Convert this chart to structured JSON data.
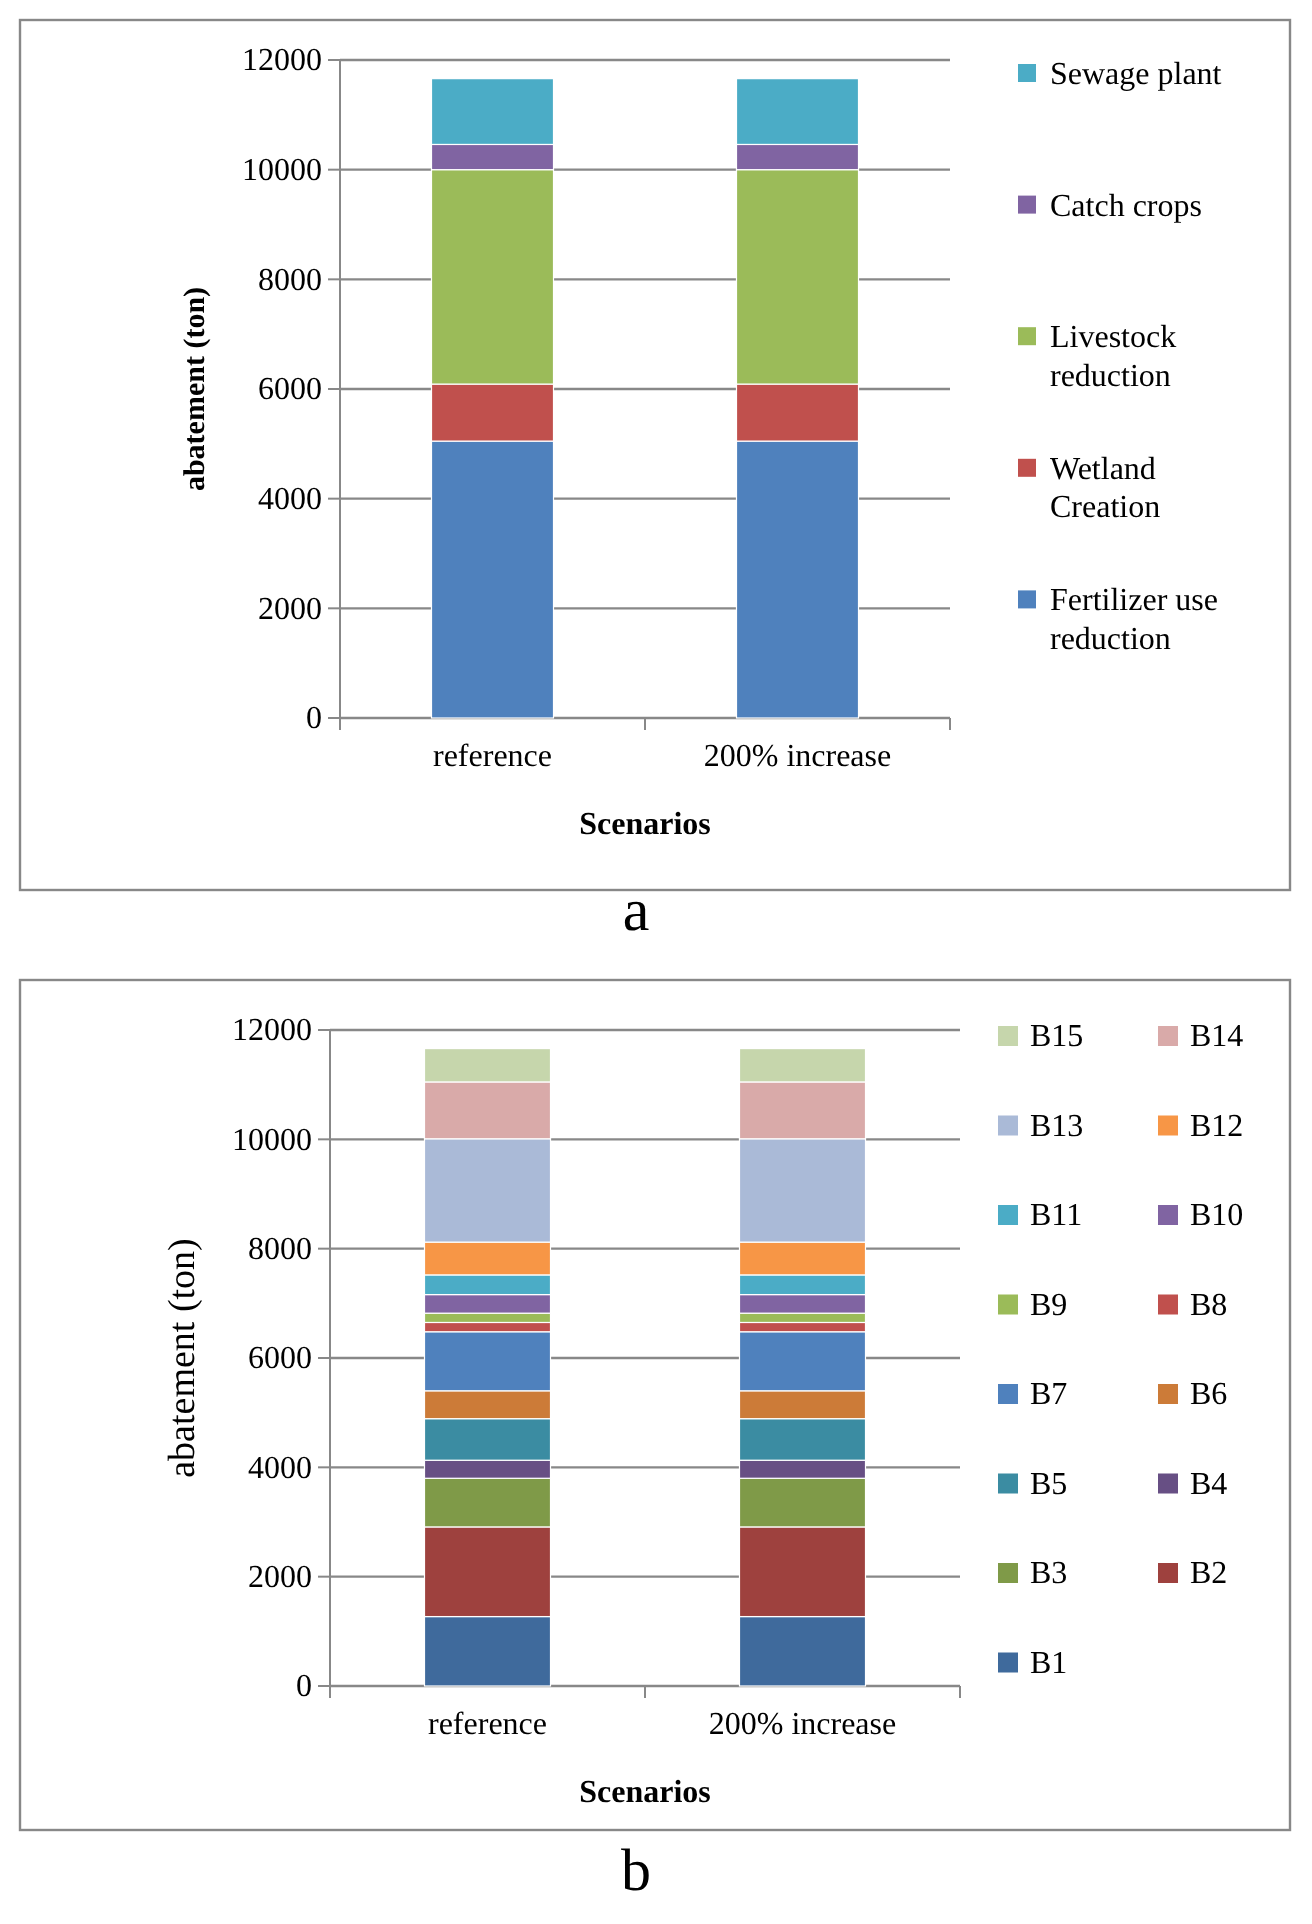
{
  "chart_data": [
    {
      "type": "bar",
      "stacked": true,
      "categories": [
        "reference",
        "200% increase"
      ],
      "xlabel": "Scenarios",
      "ylabel": "abatement (ton)",
      "ylim": [
        0,
        12000
      ],
      "yticks": [
        0,
        2000,
        4000,
        6000,
        8000,
        10000,
        12000
      ],
      "grid": "y",
      "legend": "right",
      "annotations": [
        "a"
      ],
      "series": [
        {
          "name": "Fertilizer use reduction",
          "color": "#4f81bd",
          "values": [
            5050,
            5050
          ]
        },
        {
          "name": "Wetland Creation",
          "color": "#c0504d",
          "values": [
            1040,
            1040
          ]
        },
        {
          "name": "Livestock reduction",
          "color": "#9bbb59",
          "values": [
            3910,
            3910
          ]
        },
        {
          "name": "Catch crops",
          "color": "#8064a2",
          "values": [
            460,
            460
          ]
        },
        {
          "name": "Sewage plant",
          "color": "#4bacc6",
          "values": [
            1200,
            1200
          ]
        }
      ]
    },
    {
      "type": "bar",
      "stacked": true,
      "categories": [
        "reference",
        "200% increase"
      ],
      "xlabel": "Scenarios",
      "ylabel": "abatement (ton)",
      "ylim": [
        0,
        12000
      ],
      "yticks": [
        0,
        2000,
        4000,
        6000,
        8000,
        10000,
        12000
      ],
      "grid": "y",
      "legend": "right",
      "annotations": [
        "b"
      ],
      "series": [
        {
          "name": "B1",
          "color": "#3f6a9c",
          "values": [
            1270,
            1270
          ]
        },
        {
          "name": "B2",
          "color": "#9e413e",
          "values": [
            1640,
            1640
          ]
        },
        {
          "name": "B3",
          "color": "#7f9a48",
          "values": [
            890,
            890
          ]
        },
        {
          "name": "B4",
          "color": "#674f84",
          "values": [
            330,
            330
          ]
        },
        {
          "name": "B5",
          "color": "#3b8ca2",
          "values": [
            760,
            760
          ]
        },
        {
          "name": "B6",
          "color": "#cc7b38",
          "values": [
            510,
            510
          ]
        },
        {
          "name": "B7",
          "color": "#4f81bd",
          "values": [
            1080,
            1080
          ]
        },
        {
          "name": "B8",
          "color": "#c0504d",
          "values": [
            170,
            170
          ]
        },
        {
          "name": "B9",
          "color": "#9bbb59",
          "values": [
            170,
            170
          ]
        },
        {
          "name": "B10",
          "color": "#8064a2",
          "values": [
            340,
            340
          ]
        },
        {
          "name": "B11",
          "color": "#4bacc6",
          "values": [
            360,
            360
          ]
        },
        {
          "name": "B12",
          "color": "#f79646",
          "values": [
            600,
            600
          ]
        },
        {
          "name": "B13",
          "color": "#aabad7",
          "values": [
            1890,
            1890
          ]
        },
        {
          "name": "B14",
          "color": "#d9aaa9",
          "values": [
            1040,
            1040
          ]
        },
        {
          "name": "B15",
          "color": "#c6d6ac",
          "values": [
            610,
            610
          ]
        }
      ]
    }
  ]
}
